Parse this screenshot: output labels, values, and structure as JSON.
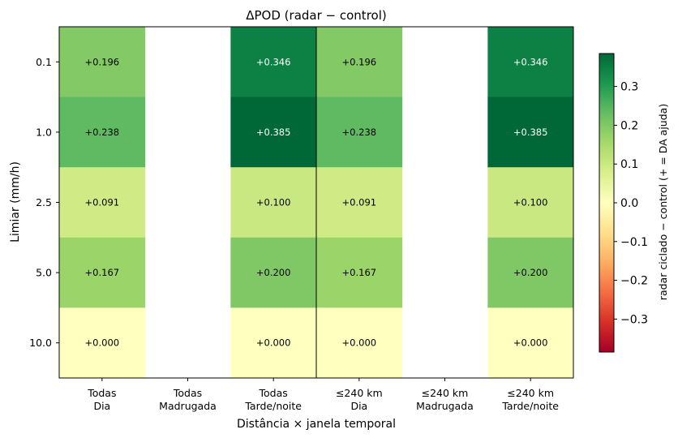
{
  "chart_data": {
    "type": "heatmap",
    "title": "ΔPOD  (radar − control)",
    "xlabel": "Distância × janela temporal",
    "ylabel": "Limiar (mm/h)",
    "x_categories": [
      {
        "line1": "Todas",
        "line2": "Dia"
      },
      {
        "line1": "Todas",
        "line2": "Madrugada"
      },
      {
        "line1": "Todas",
        "line2": "Tarde/noite"
      },
      {
        "line1": "≤240 km",
        "line2": "Dia"
      },
      {
        "line1": "≤240 km",
        "line2": "Madrugada"
      },
      {
        "line1": "≤240 km",
        "line2": "Tarde/noite"
      }
    ],
    "y_categories": [
      "0.1",
      "1.0",
      "2.5",
      "5.0",
      "10.0"
    ],
    "values": [
      [
        0.196,
        null,
        0.346,
        0.196,
        null,
        0.346
      ],
      [
        0.238,
        null,
        0.385,
        0.238,
        null,
        0.385
      ],
      [
        0.091,
        null,
        0.1,
        0.091,
        null,
        0.1
      ],
      [
        0.167,
        null,
        0.2,
        0.167,
        null,
        0.2
      ],
      [
        0.0,
        null,
        0.0,
        0.0,
        null,
        0.0
      ]
    ],
    "cell_labels": [
      [
        "+0.196",
        "",
        "+0.346",
        "+0.196",
        "",
        "+0.346"
      ],
      [
        "+0.238",
        "",
        "+0.385",
        "+0.238",
        "",
        "+0.385"
      ],
      [
        "+0.091",
        "",
        "+0.100",
        "+0.091",
        "",
        "+0.100"
      ],
      [
        "+0.167",
        "",
        "+0.200",
        "+0.167",
        "",
        "+0.200"
      ],
      [
        "+0.000",
        "",
        "+0.000",
        "+0.000",
        "",
        "+0.000"
      ]
    ],
    "colormap": "RdYlGn",
    "vmin": -0.385,
    "vmax": 0.385,
    "separator_after_column": 2,
    "colorbar": {
      "label": "radar ciclado − control  (+ = DA ajuda)",
      "ticks": [
        0.3,
        0.2,
        0.1,
        0.0,
        -0.1,
        -0.2,
        -0.3
      ],
      "tick_labels": [
        "0.3",
        "0.2",
        "0.1",
        "0.0",
        "−0.1",
        "−0.2",
        "−0.3"
      ]
    }
  }
}
